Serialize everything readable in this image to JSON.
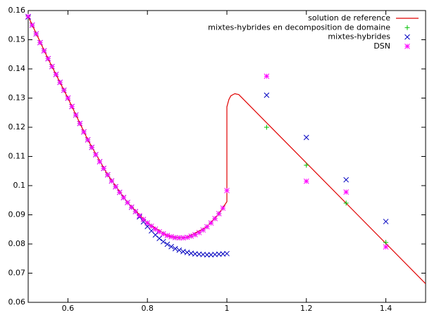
{
  "chart_data": {
    "type": "scatter",
    "x": [
      0.5,
      0.51,
      0.52,
      0.53,
      0.54,
      0.55,
      0.56,
      0.57,
      0.58,
      0.59,
      0.6,
      0.61,
      0.62,
      0.63,
      0.64,
      0.65,
      0.66,
      0.67,
      0.68,
      0.69,
      0.7,
      0.71,
      0.72,
      0.73,
      0.74,
      0.75,
      0.76,
      0.77,
      0.78,
      0.79,
      0.8,
      0.81,
      0.82,
      0.83,
      0.84,
      0.85,
      0.86,
      0.87,
      0.88,
      0.89,
      0.9,
      0.91,
      0.92,
      0.93,
      0.94,
      0.95,
      0.96,
      0.97,
      0.98,
      0.99,
      1,
      1.1,
      1.2,
      1.3,
      1.4
    ],
    "series": [
      {
        "name": "solution de reference",
        "type": "line",
        "color": "#e00000",
        "x": [
          0.5,
          0.55,
          0.6,
          0.65,
          0.7,
          0.75,
          0.8,
          0.85,
          0.88,
          0.9,
          0.95,
          0.98,
          1,
          1,
          1.005,
          1.01,
          1.02,
          1.03,
          1.5
        ],
        "values": [
          0.158,
          0.1435,
          0.13,
          0.1157,
          0.1037,
          0.0942,
          0.0872,
          0.0829,
          0.0821,
          0.0823,
          0.0859,
          0.0904,
          0.0945,
          0.127,
          0.1295,
          0.1308,
          0.1315,
          0.1312,
          0.0664
        ]
      },
      {
        "name": "mixtes-hybrides en decomposition de domaine",
        "marker": "plus",
        "color": "#00c000",
        "values": [
          0.158,
          0.155,
          0.152,
          0.149,
          0.1462,
          0.1435,
          0.1408,
          0.1381,
          0.1354,
          0.1327,
          0.13,
          0.1271,
          0.1242,
          0.1213,
          0.1184,
          0.1157,
          0.1131,
          0.1106,
          0.1082,
          0.1059,
          0.1037,
          0.1016,
          0.0996,
          0.0977,
          0.0959,
          0.0942,
          0.0926,
          0.0911,
          0.0897,
          0.0884,
          0.0872,
          0.0861,
          0.0851,
          0.0842,
          0.0835,
          0.0829,
          0.0825,
          0.0822,
          0.0821,
          0.0821,
          0.0823,
          0.0827,
          0.0832,
          0.0839,
          0.0848,
          0.0859,
          0.0872,
          0.0887,
          0.0904,
          0.0923,
          0.0983,
          0.12,
          0.107,
          0.094,
          0.0805
        ]
      },
      {
        "name": "mixtes-hybrides",
        "marker": "cross",
        "color": "#0000c0",
        "values": [
          0.1578,
          0.155,
          0.152,
          0.149,
          0.1462,
          0.1435,
          0.1408,
          0.1381,
          0.1354,
          0.1327,
          0.13,
          0.1271,
          0.1242,
          0.1213,
          0.1184,
          0.1157,
          0.1131,
          0.1106,
          0.1082,
          0.1059,
          0.1037,
          0.1016,
          0.0996,
          0.0977,
          0.0959,
          0.0942,
          0.0926,
          0.0911,
          0.0893,
          0.0876,
          0.086,
          0.0845,
          0.0831,
          0.0819,
          0.0808,
          0.0799,
          0.0791,
          0.0784,
          0.0779,
          0.0774,
          0.0771,
          0.0768,
          0.0766,
          0.0765,
          0.0764,
          0.0763,
          0.0763,
          0.0764,
          0.0765,
          0.0766,
          0.0767,
          0.131,
          0.1165,
          0.102,
          0.0877
        ]
      },
      {
        "name": "DSN",
        "marker": "star",
        "color": "#ff00ff",
        "values": [
          0.158,
          0.155,
          0.152,
          0.149,
          0.1462,
          0.1435,
          0.1408,
          0.1381,
          0.1354,
          0.1327,
          0.13,
          0.1271,
          0.1242,
          0.1213,
          0.1184,
          0.1157,
          0.1131,
          0.1106,
          0.1082,
          0.1059,
          0.1037,
          0.1016,
          0.0996,
          0.0977,
          0.0959,
          0.0942,
          0.0926,
          0.0911,
          0.0897,
          0.0884,
          0.0872,
          0.0861,
          0.0851,
          0.0842,
          0.0835,
          0.0829,
          0.0825,
          0.0822,
          0.0821,
          0.0821,
          0.0823,
          0.0827,
          0.0832,
          0.0839,
          0.0848,
          0.0859,
          0.0872,
          0.0887,
          0.0904,
          0.0923,
          0.0983,
          0.1375,
          0.1015,
          0.0978,
          0.079
        ]
      }
    ],
    "xlim": [
      0.5,
      1.5
    ],
    "ylim": [
      0.06,
      0.16
    ],
    "xticks": [
      0.6,
      0.8,
      1,
      1.2,
      1.4
    ],
    "yticks": [
      0.06,
      0.07,
      0.08,
      0.09,
      0.1,
      0.11,
      0.12,
      0.13,
      0.14,
      0.15,
      0.16
    ],
    "legend": "top-right"
  }
}
